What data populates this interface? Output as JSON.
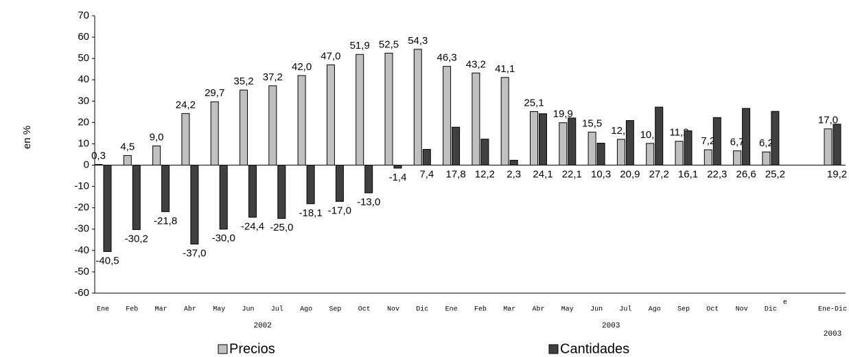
{
  "chart_data": {
    "type": "bar",
    "y_label": "en %",
    "categories": [
      "Ene",
      "Feb",
      "Mar",
      "Abr",
      "May",
      "Jun",
      "Jul",
      "Ago",
      "Sep",
      "Oct",
      "Nov",
      "Dic",
      "Ene",
      "Feb",
      "Mar",
      "Abr",
      "May",
      "Jun",
      "Jul",
      "Ago",
      "Sep",
      "Oct",
      "Nov",
      "Dic",
      "Ene-Dic"
    ],
    "groups": [
      "2002",
      "2003",
      "2003"
    ],
    "annotation": "e",
    "series": [
      {
        "name": "Precios",
        "color": "#c0c0c0",
        "values": [
          0.3,
          4.5,
          9.0,
          24.2,
          29.7,
          35.2,
          37.2,
          42.0,
          47.0,
          51.9,
          52.5,
          54.3,
          46.3,
          43.2,
          41.1,
          25.1,
          19.9,
          15.5,
          12.1,
          10.2,
          11.2,
          7.2,
          6.7,
          6.2,
          17.0
        ],
        "value_labels": [
          "0,3",
          "4,5",
          "9,0",
          "24,2",
          "29,7",
          "35,2",
          "37,2",
          "42,0",
          "47,0",
          "51,9",
          "52,5",
          "54,3",
          "46,3",
          "43,2",
          "41,1",
          "25,1",
          "19,9",
          "15,5",
          "12,1",
          "10,2",
          "11,2",
          "7,2",
          "6,7",
          "6,2",
          "17,0"
        ]
      },
      {
        "name": "Cantidades",
        "color": "#404040",
        "values": [
          -40.5,
          -30.2,
          -21.8,
          -37.0,
          -30.0,
          -24.4,
          -25.0,
          -18.1,
          -17.0,
          -13.0,
          -1.4,
          7.4,
          17.8,
          12.2,
          2.3,
          24.1,
          22.1,
          10.3,
          20.9,
          27.2,
          16.1,
          22.3,
          26.6,
          25.2,
          19.2
        ],
        "value_labels": [
          "-40,5",
          "-30,2",
          "-21,8",
          "-37,0",
          "-30,0",
          "-24,4",
          "-25,0",
          "-18,1",
          "-17,0",
          "-13,0",
          "-1,4",
          "7,4",
          "17,8",
          "12,2",
          "2,3",
          "24,1",
          "22,1",
          "10,3",
          "20,9",
          "27,2",
          "16,1",
          "22,3",
          "26,6",
          "25,2",
          "19,2"
        ]
      }
    ],
    "ylim": [
      -60,
      70
    ],
    "yticks": [
      -60,
      -50,
      -40,
      -30,
      -20,
      -10,
      0,
      10,
      20,
      30,
      40,
      50,
      60,
      70
    ],
    "grid": false
  }
}
